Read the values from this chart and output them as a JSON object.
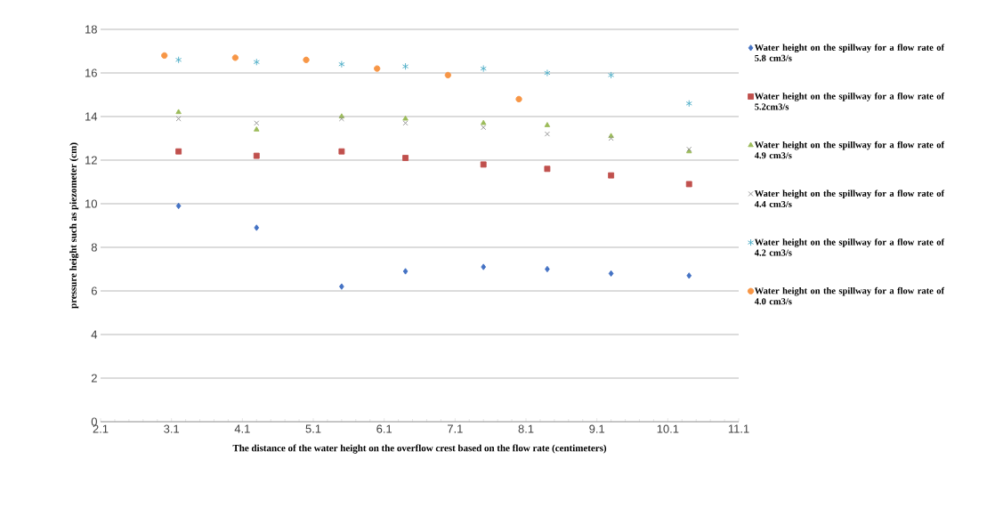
{
  "chart_data": {
    "type": "scatter",
    "xlabel": "The distance of the water height on the overflow crest based on the flow rate (centimeters)",
    "ylabel": "pressure height such as piezometer (cm)",
    "xlim": [
      2.1,
      11.1
    ],
    "xticks": [
      2.1,
      3.1,
      4.1,
      5.1,
      6.1,
      7.1,
      8.1,
      9.1,
      10.1,
      11.1
    ],
    "ylim": [
      0,
      18
    ],
    "yticks": [
      0,
      2,
      4,
      6,
      8,
      10,
      12,
      14,
      16,
      18
    ],
    "grid": "y",
    "legend": "right",
    "series": [
      {
        "name": "Water height on the spillway for a flow rate of 5.8 cm3/s",
        "color": "#4472c4",
        "marker": "diamond",
        "x": [
          3.2,
          4.3,
          5.5,
          6.4,
          7.5,
          8.4,
          9.3,
          10.4
        ],
        "values": [
          9.9,
          8.9,
          6.2,
          6.9,
          7.1,
          7.0,
          6.8,
          6.7
        ]
      },
      {
        "name": "Water height on the spillway for a flow rate of 5.2cm3/s",
        "color": "#c0504d",
        "marker": "square",
        "x": [
          3.2,
          4.3,
          5.5,
          6.4,
          7.5,
          8.4,
          9.3,
          10.4
        ],
        "values": [
          12.4,
          12.2,
          12.4,
          12.1,
          11.8,
          11.6,
          11.3,
          10.9
        ]
      },
      {
        "name": "Water height on the spillway for a flow rate of 4.9 cm3/s",
        "color": "#9bbb59",
        "marker": "triangle",
        "x": [
          3.2,
          4.3,
          5.5,
          6.4,
          7.5,
          8.4,
          9.3,
          10.4
        ],
        "values": [
          14.2,
          13.4,
          14.0,
          13.9,
          13.7,
          13.6,
          13.1,
          12.4
        ]
      },
      {
        "name": "Water height on the spillway for a flow rate of 4.4 cm3/s",
        "color": "#8c8c8c",
        "marker": "cross",
        "x": [
          3.2,
          4.3,
          5.5,
          6.4,
          7.5,
          8.4,
          9.3,
          10.4
        ],
        "values": [
          13.9,
          13.7,
          13.9,
          13.7,
          13.5,
          13.2,
          13.0,
          12.5
        ]
      },
      {
        "name": "Water height on the spillway for a flow rate of 4.2 cm3/s",
        "color": "#4bacc6",
        "x": [
          3.2,
          4.3,
          5.5,
          6.4,
          7.5,
          8.4,
          9.3,
          10.4
        ],
        "values": [
          16.6,
          16.5,
          16.4,
          16.3,
          16.2,
          16.0,
          15.9,
          14.6
        ]
      },
      {
        "name": "Water height on the spillway for a flow rate of 4.0 cm3/s",
        "color": "#f79646",
        "marker": "circle",
        "x": [
          3.0,
          4.0,
          5.0,
          6.0,
          7.0,
          8.0
        ],
        "values": [
          16.8,
          16.7,
          16.6,
          16.2,
          15.9,
          14.8
        ]
      }
    ]
  }
}
